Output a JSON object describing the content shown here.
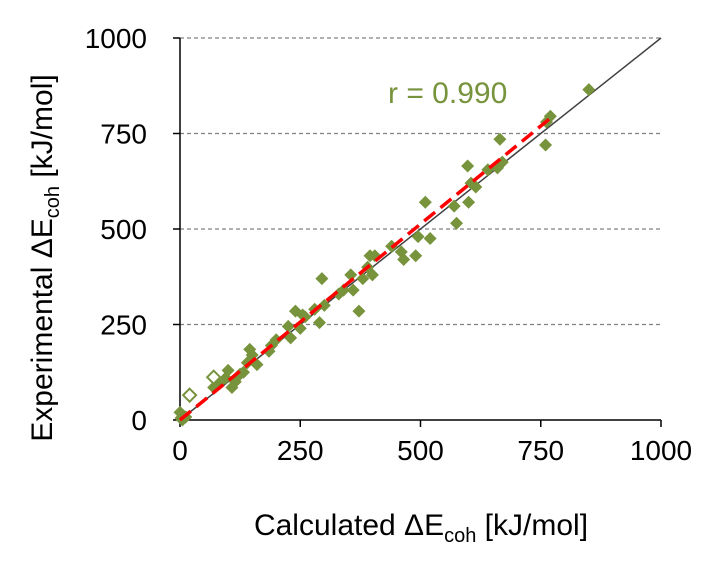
{
  "colors": {
    "marker": "#77933C",
    "fit_line": "#FF0000",
    "identity_line": "#404040",
    "gridline": "#808080",
    "annotation": "#77933C"
  },
  "chart_data": {
    "type": "scatter",
    "xlabel": {
      "prefix": "Calculated ΔE",
      "subscript": "coh",
      "suffix": " [kJ/mol]"
    },
    "ylabel": {
      "prefix": "Experimental ΔE",
      "subscript": "coh",
      "suffix": " [kJ/mol]"
    },
    "xlim": [
      0,
      1000
    ],
    "ylim": [
      0,
      1000
    ],
    "xticks": [
      0,
      250,
      500,
      750,
      1000
    ],
    "yticks": [
      0,
      250,
      500,
      750,
      1000
    ],
    "grid": "horizontal-dashed",
    "annotation": "r = 0.990",
    "identity_line": {
      "x": [
        0,
        1000
      ],
      "y": [
        0,
        1000
      ]
    },
    "fit_line": {
      "x": [
        0,
        770
      ],
      "y": [
        0,
        790
      ],
      "style": "dashed"
    },
    "series": [
      {
        "name": "filled",
        "marker": "diamond-filled",
        "points": [
          [
            0,
            20
          ],
          [
            2,
            5
          ],
          [
            5,
            0
          ],
          [
            8,
            10
          ],
          [
            12,
            8
          ],
          [
            70,
            85
          ],
          [
            80,
            95
          ],
          [
            95,
            110
          ],
          [
            100,
            130
          ],
          [
            108,
            85
          ],
          [
            115,
            100
          ],
          [
            125,
            120
          ],
          [
            132,
            125
          ],
          [
            140,
            150
          ],
          [
            145,
            185
          ],
          [
            150,
            170
          ],
          [
            160,
            145
          ],
          [
            185,
            180
          ],
          [
            190,
            195
          ],
          [
            200,
            210
          ],
          [
            225,
            245
          ],
          [
            230,
            215
          ],
          [
            240,
            285
          ],
          [
            250,
            240
          ],
          [
            255,
            275
          ],
          [
            260,
            270
          ],
          [
            280,
            290
          ],
          [
            290,
            255
          ],
          [
            295,
            370
          ],
          [
            300,
            300
          ],
          [
            330,
            330
          ],
          [
            340,
            340
          ],
          [
            355,
            380
          ],
          [
            360,
            340
          ],
          [
            372,
            285
          ],
          [
            380,
            370
          ],
          [
            390,
            400
          ],
          [
            395,
            430
          ],
          [
            400,
            380
          ],
          [
            405,
            430
          ],
          [
            440,
            455
          ],
          [
            460,
            440
          ],
          [
            465,
            420
          ],
          [
            490,
            430
          ],
          [
            495,
            480
          ],
          [
            510,
            570
          ],
          [
            520,
            475
          ],
          [
            570,
            560
          ],
          [
            575,
            515
          ],
          [
            598,
            665
          ],
          [
            600,
            570
          ],
          [
            605,
            620
          ],
          [
            615,
            610
          ],
          [
            640,
            655
          ],
          [
            660,
            660
          ],
          [
            665,
            735
          ],
          [
            670,
            675
          ],
          [
            760,
            720
          ],
          [
            762,
            780
          ],
          [
            770,
            795
          ],
          [
            850,
            865
          ]
        ]
      },
      {
        "name": "open",
        "marker": "diamond-open",
        "points": [
          [
            20,
            65
          ],
          [
            70,
            112
          ]
        ]
      }
    ]
  }
}
